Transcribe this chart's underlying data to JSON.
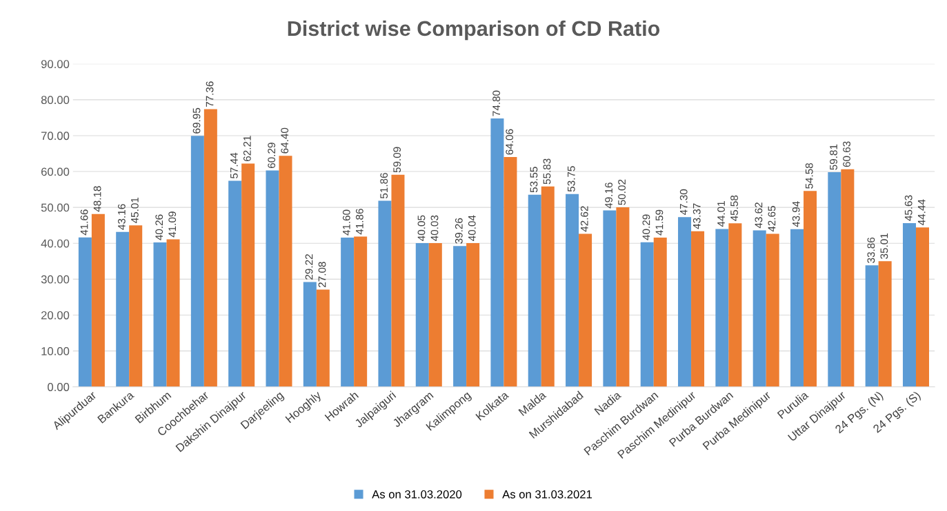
{
  "chart_data": {
    "type": "bar",
    "title": "District wise Comparison of CD Ratio",
    "categories": [
      "Alipurduar",
      "Bankura",
      "Birbhum",
      "Coochbehar",
      "Dakshin Dinajpur",
      "Darjeeling",
      "Hooghly",
      "Howrah",
      "Jalpaiguri",
      "Jhargram",
      "Kalimpong",
      "Kolkata",
      "Malda",
      "Murshidabad",
      "Nadia",
      "Paschim Burdwan",
      "Paschim Medinipur",
      "Purba Burdwan",
      "Purba Medinipur",
      "Purulia",
      "Uttar Dinajpur",
      "24 Pgs. (N)",
      "24 Pgs. (S)"
    ],
    "series": [
      {
        "name": "As on 31.03.2020",
        "color": "#5b9bd5",
        "values": [
          41.66,
          43.16,
          40.26,
          69.95,
          57.44,
          60.29,
          29.22,
          41.6,
          51.86,
          40.05,
          39.26,
          74.8,
          53.55,
          53.75,
          49.16,
          40.29,
          47.3,
          44.01,
          43.62,
          43.94,
          59.81,
          33.86,
          45.63
        ],
        "value_labels": [
          "41.66",
          "43.16",
          "40.26",
          "69.95",
          "57.44",
          "60.29",
          "29.22",
          "41.60",
          "51.86",
          "40.05",
          "39.26",
          "74.80",
          "53.55",
          "53.75",
          "49.16",
          "40.29",
          "47.30",
          "44.01",
          "43.62",
          "43.94",
          "59.81",
          "33.86",
          "45.63"
        ]
      },
      {
        "name": "As on 31.03.2021",
        "color": "#ed7d31",
        "values": [
          48.18,
          45.01,
          41.09,
          77.36,
          62.21,
          64.4,
          27.08,
          41.86,
          59.09,
          40.03,
          40.04,
          64.06,
          55.83,
          42.62,
          50.02,
          41.59,
          43.37,
          45.58,
          42.65,
          54.58,
          60.63,
          35.01,
          44.44
        ],
        "value_labels": [
          "48.18",
          "45.01",
          "41.09",
          "77.36",
          "62.21",
          "64.40",
          "27.08",
          "41.86",
          "59.09",
          "40.03",
          "40.04",
          "64.06",
          "55.83",
          "42.62",
          "50.02",
          "41.59",
          "43.37",
          "45.58",
          "42.65",
          "54.58",
          "60.63",
          "35.01",
          "44.44"
        ]
      }
    ],
    "ylim": [
      0,
      90
    ],
    "yticks": [
      {
        "value": 0,
        "label": "0.00"
      },
      {
        "value": 10,
        "label": "10.00"
      },
      {
        "value": 20,
        "label": "20.00"
      },
      {
        "value": 30,
        "label": "30.00"
      },
      {
        "value": 40,
        "label": "40.00"
      },
      {
        "value": 50,
        "label": "50.00"
      },
      {
        "value": 60,
        "label": "60.00"
      },
      {
        "value": 70,
        "label": "70.00"
      },
      {
        "value": 80,
        "label": "80.00"
      },
      {
        "value": 90,
        "label": "90.00"
      }
    ],
    "grid": "y",
    "legend": "bottom"
  }
}
